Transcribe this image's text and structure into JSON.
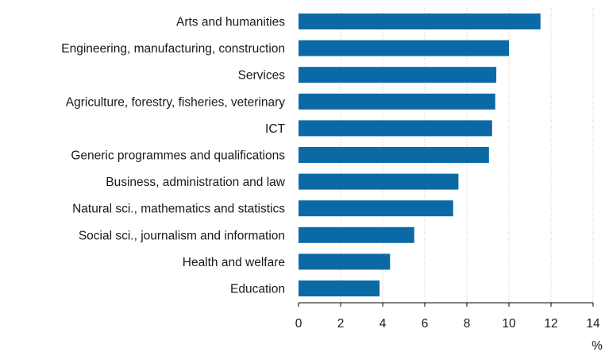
{
  "chart_data": {
    "type": "bar",
    "orientation": "horizontal",
    "categories": [
      "Arts and humanities",
      "Engineering, manufacturing, construction",
      "Services",
      "Agriculture, forestry, fisheries, veterinary",
      "ICT",
      "Generic programmes and qualifications",
      "Business, administration and law",
      "Natural sci., mathematics and statistics",
      "Social sci., journalism and information",
      "Health and welfare",
      "Education"
    ],
    "values": [
      11.5,
      10.0,
      9.4,
      9.35,
      9.2,
      9.05,
      7.6,
      7.35,
      5.5,
      4.35,
      3.85
    ],
    "xlim": [
      0,
      14
    ],
    "xticks": [
      "0",
      "2",
      "4",
      "6",
      "8",
      "10",
      "12",
      "14"
    ],
    "xunit": "%",
    "grid": "vertical",
    "bar_color": "#0b6aa6"
  }
}
